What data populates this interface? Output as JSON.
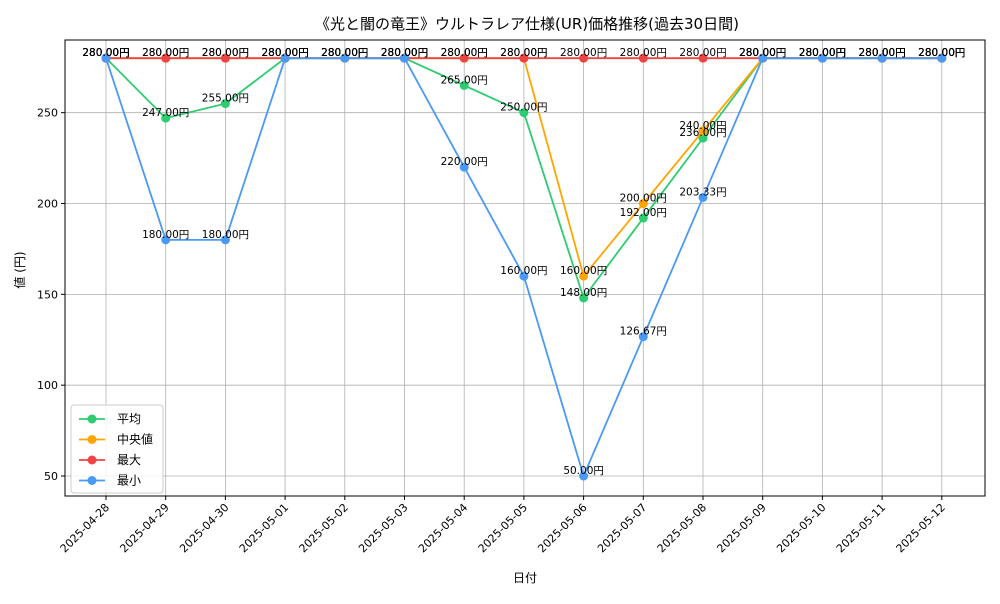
{
  "chart_data": {
    "type": "line",
    "title": "《光と闇の竜王》ウルトラレア仕様(UR)価格推移(過去30日間)",
    "xlabel": "日付",
    "ylabel": "値 (円)",
    "x": [
      "2025-04-28",
      "2025-04-29",
      "2025-04-30",
      "2025-05-01",
      "2025-05-02",
      "2025-05-03",
      "2025-05-04",
      "2025-05-05",
      "2025-05-06",
      "2025-05-07",
      "2025-05-08",
      "2025-05-09",
      "2025-05-10",
      "2025-05-11",
      "2025-05-12"
    ],
    "ylim": [
      39,
      290
    ],
    "yticks": [
      50,
      100,
      150,
      200,
      250
    ],
    "grid": true,
    "legend_position": "bottom-left",
    "value_suffix": "円",
    "series": [
      {
        "name": "平均",
        "color": "#2ecc71",
        "values": [
          280,
          247,
          255,
          280,
          280,
          280,
          265,
          250,
          148,
          192,
          236,
          280,
          280,
          280,
          280
        ]
      },
      {
        "name": "中央値",
        "color": "#ffa500",
        "values": [
          280,
          280,
          280,
          280,
          280,
          280,
          280,
          280,
          160,
          200,
          240,
          280,
          280,
          280,
          280
        ]
      },
      {
        "name": "最大",
        "color": "#ef4444",
        "values": [
          280,
          280,
          280,
          280,
          280,
          280,
          280,
          280,
          280,
          280,
          280,
          280,
          280,
          280,
          280
        ]
      },
      {
        "name": "最小",
        "color": "#4a9af5",
        "values": [
          280,
          180,
          180,
          280,
          280,
          280,
          220,
          160,
          50,
          126.67,
          203.33,
          280,
          280,
          280,
          280
        ]
      }
    ]
  }
}
